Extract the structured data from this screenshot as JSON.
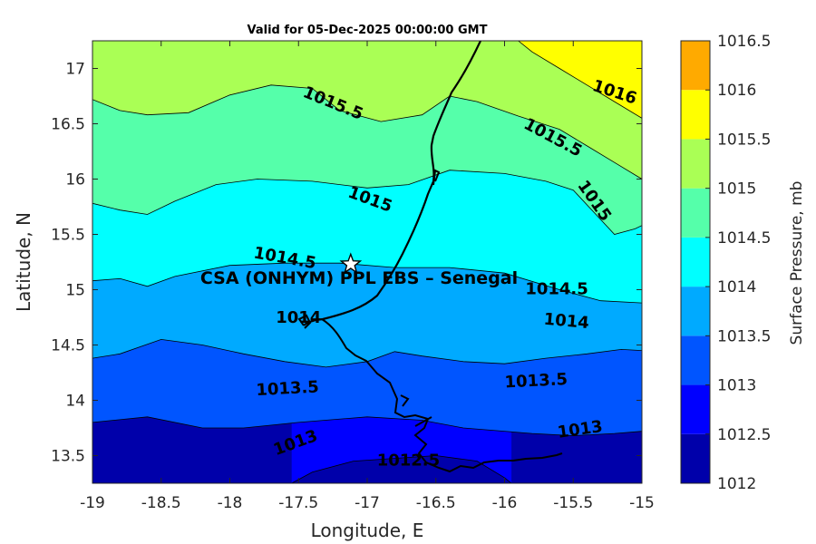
{
  "title": "Valid for 05-Dec-2025 00:00:00 GMT",
  "xlabel": "Longitude, E",
  "ylabel": "Latitude, N",
  "site_label": "CSA (ONHYM) PPL EBS  – Senegal",
  "site_lon": -17.12,
  "site_lat": 15.23,
  "xlim": [
    -19,
    -15
  ],
  "ylim": [
    13.25,
    17.25
  ],
  "x_ticks": [
    -19,
    -18.5,
    -18,
    -17.5,
    -17,
    -16.5,
    -16,
    -15.5,
    -15
  ],
  "x_tick_labels": [
    "-19",
    "-18.5",
    "-18",
    "-17.5",
    "-17",
    "-16.5",
    "-16",
    "-15.5",
    "-15"
  ],
  "y_ticks": [
    13.5,
    14,
    14.5,
    15,
    15.5,
    16,
    16.5,
    17
  ],
  "y_tick_labels": [
    "13.5",
    "14",
    "14.5",
    "15",
    "15.5",
    "16",
    "16.5",
    "17"
  ],
  "colorbar": {
    "label": "Surface Pressure, mb",
    "levels": [
      1012,
      1012.5,
      1013,
      1013.5,
      1014,
      1014.5,
      1015,
      1015.5,
      1016,
      1016.5
    ],
    "tick_labels": [
      "1012",
      "1012.5",
      "1013",
      "1013.5",
      "1014",
      "1014.5",
      "1015",
      "1015.5",
      "1016",
      "1016.5"
    ],
    "colors": [
      "#0000AA",
      "#0000FF",
      "#0055FF",
      "#00AAFF",
      "#00FFFF",
      "#55FFAA",
      "#AAFF55",
      "#FFFF00",
      "#FFAA00"
    ]
  },
  "contour_labels": [
    {
      "text": "1015.5",
      "lon": -17.25,
      "lat": 16.68,
      "angle": 22
    },
    {
      "text": "1016",
      "lon": -15.2,
      "lat": 16.78,
      "angle": 18
    },
    {
      "text": "1015.5",
      "lon": -15.65,
      "lat": 16.37,
      "angle": 28
    },
    {
      "text": "1015",
      "lon": -16.98,
      "lat": 15.81,
      "angle": 20
    },
    {
      "text": "1015",
      "lon": -15.35,
      "lat": 15.8,
      "angle": 55
    },
    {
      "text": "1014.5",
      "lon": -17.6,
      "lat": 15.28,
      "angle": 10
    },
    {
      "text": "1014.5",
      "lon": -15.62,
      "lat": 15.0,
      "angle": 0
    },
    {
      "text": "1014",
      "lon": -17.5,
      "lat": 14.74,
      "angle": 0
    },
    {
      "text": "1014",
      "lon": -15.55,
      "lat": 14.71,
      "angle": 5
    },
    {
      "text": "1013.5",
      "lon": -17.58,
      "lat": 14.1,
      "angle": -3
    },
    {
      "text": "1013.5",
      "lon": -15.77,
      "lat": 14.17,
      "angle": -3
    },
    {
      "text": "1013",
      "lon": -17.52,
      "lat": 13.61,
      "angle": -20
    },
    {
      "text": "1013",
      "lon": -15.45,
      "lat": 13.73,
      "angle": -8
    },
    {
      "text": "1012.5",
      "lon": -16.7,
      "lat": 13.45,
      "angle": 0
    }
  ],
  "filled_levels": [
    {
      "level": 1012.5,
      "boundary": [
        [
          -17.55,
          13.25
        ],
        [
          -17.4,
          13.35
        ],
        [
          -17.1,
          13.45
        ],
        [
          -16.5,
          13.5
        ],
        [
          -16.2,
          13.45
        ],
        [
          -16.0,
          13.3
        ],
        [
          -15.95,
          13.25
        ]
      ]
    },
    {
      "level": 1013,
      "boundary": [
        [
          -19,
          13.8
        ],
        [
          -18.6,
          13.85
        ],
        [
          -18.2,
          13.75
        ],
        [
          -17.9,
          13.75
        ],
        [
          -17.5,
          13.8
        ],
        [
          -17.0,
          13.85
        ],
        [
          -16.6,
          13.82
        ],
        [
          -16.3,
          13.75
        ],
        [
          -15.8,
          13.7
        ],
        [
          -15.5,
          13.68
        ],
        [
          -15.2,
          13.7
        ],
        [
          -15,
          13.72
        ]
      ]
    },
    {
      "level": 1013.5,
      "boundary": [
        [
          -19,
          14.38
        ],
        [
          -18.8,
          14.42
        ],
        [
          -18.5,
          14.55
        ],
        [
          -18.2,
          14.5
        ],
        [
          -17.9,
          14.42
        ],
        [
          -17.6,
          14.35
        ],
        [
          -17.3,
          14.3
        ],
        [
          -17.0,
          14.35
        ],
        [
          -16.8,
          14.44
        ],
        [
          -16.6,
          14.4
        ],
        [
          -16.3,
          14.35
        ],
        [
          -16.0,
          14.33
        ],
        [
          -15.7,
          14.38
        ],
        [
          -15.4,
          14.42
        ],
        [
          -15.15,
          14.46
        ],
        [
          -15,
          14.45
        ]
      ]
    },
    {
      "level": 1014,
      "boundary": [
        [
          -19,
          15.08
        ],
        [
          -18.8,
          15.1
        ],
        [
          -18.6,
          15.03
        ],
        [
          -18.4,
          15.12
        ],
        [
          -18.0,
          15.22
        ],
        [
          -17.6,
          15.24
        ],
        [
          -17.2,
          15.24
        ],
        [
          -16.8,
          15.2
        ],
        [
          -16.4,
          15.2
        ],
        [
          -16.0,
          15.15
        ],
        [
          -15.6,
          15.0
        ],
        [
          -15.3,
          14.9
        ],
        [
          -15,
          14.88
        ]
      ]
    },
    {
      "level": 1014.5,
      "boundary": [
        [
          -19,
          15.78
        ],
        [
          -18.8,
          15.72
        ],
        [
          -18.6,
          15.68
        ],
        [
          -18.4,
          15.8
        ],
        [
          -18.1,
          15.95
        ],
        [
          -17.8,
          16.0
        ],
        [
          -17.4,
          15.98
        ],
        [
          -17.0,
          15.92
        ],
        [
          -16.7,
          15.95
        ],
        [
          -16.4,
          16.08
        ],
        [
          -16.0,
          16.05
        ],
        [
          -15.7,
          15.98
        ],
        [
          -15.5,
          15.9
        ],
        [
          -15.35,
          15.7
        ],
        [
          -15.2,
          15.5
        ],
        [
          -15.05,
          15.55
        ],
        [
          -15,
          15.58
        ]
      ]
    },
    {
      "level": 1015,
      "boundary": [
        [
          -19,
          16.72
        ],
        [
          -18.8,
          16.62
        ],
        [
          -18.6,
          16.58
        ],
        [
          -18.3,
          16.6
        ],
        [
          -18.0,
          16.76
        ],
        [
          -17.7,
          16.85
        ],
        [
          -17.4,
          16.82
        ],
        [
          -17.2,
          16.62
        ],
        [
          -16.9,
          16.52
        ],
        [
          -16.6,
          16.58
        ],
        [
          -16.4,
          16.75
        ],
        [
          -16.2,
          16.7
        ],
        [
          -15.9,
          16.57
        ],
        [
          -15.6,
          16.45
        ],
        [
          -15.4,
          16.3
        ],
        [
          -15.2,
          16.15
        ],
        [
          -15,
          16.0
        ]
      ]
    },
    {
      "level": 1015.5,
      "boundary": [
        [
          -15.9,
          17.25
        ],
        [
          -15.8,
          17.15
        ],
        [
          -15.6,
          17.0
        ],
        [
          -15.4,
          16.85
        ],
        [
          -15.2,
          16.7
        ],
        [
          -15,
          16.55
        ]
      ]
    }
  ]
}
